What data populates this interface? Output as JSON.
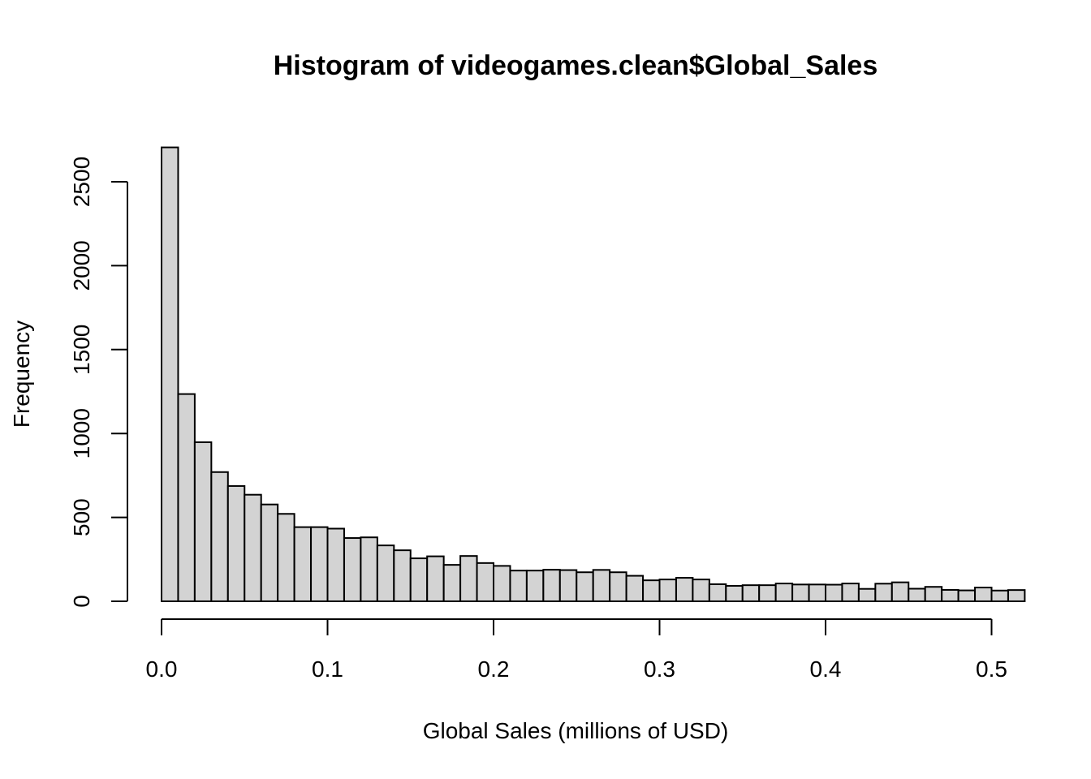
{
  "chart_data": {
    "type": "bar",
    "title": "Histogram of videogames.clean$Global_Sales",
    "xlabel": "Global Sales (millions of USD)",
    "ylabel": "Frequency",
    "bin_width": 0.01,
    "xlim": [
      0,
      0.52
    ],
    "ylim": [
      0,
      2700
    ],
    "x_ticks": [
      0.0,
      0.1,
      0.2,
      0.3,
      0.4,
      0.5
    ],
    "x_tick_labels": [
      "0.0",
      "0.1",
      "0.2",
      "0.3",
      "0.4",
      "0.5"
    ],
    "y_ticks": [
      0,
      500,
      1000,
      1500,
      2000,
      2500
    ],
    "y_tick_labels": [
      "0",
      "500",
      "1000",
      "1500",
      "2000",
      "2500"
    ],
    "bins": [
      [
        0.0,
        0.01
      ],
      [
        0.01,
        0.02
      ],
      [
        0.02,
        0.03
      ],
      [
        0.03,
        0.04
      ],
      [
        0.04,
        0.05
      ],
      [
        0.05,
        0.06
      ],
      [
        0.06,
        0.07
      ],
      [
        0.07,
        0.08
      ],
      [
        0.08,
        0.09
      ],
      [
        0.09,
        0.1
      ],
      [
        0.1,
        0.11
      ],
      [
        0.11,
        0.12
      ],
      [
        0.12,
        0.13
      ],
      [
        0.13,
        0.14
      ],
      [
        0.14,
        0.15
      ],
      [
        0.15,
        0.16
      ],
      [
        0.16,
        0.17
      ],
      [
        0.17,
        0.18
      ],
      [
        0.18,
        0.19
      ],
      [
        0.19,
        0.2
      ],
      [
        0.2,
        0.21
      ],
      [
        0.21,
        0.22
      ],
      [
        0.22,
        0.23
      ],
      [
        0.23,
        0.24
      ],
      [
        0.24,
        0.25
      ],
      [
        0.25,
        0.26
      ],
      [
        0.26,
        0.27
      ],
      [
        0.27,
        0.28
      ],
      [
        0.28,
        0.29
      ],
      [
        0.29,
        0.3
      ],
      [
        0.3,
        0.31
      ],
      [
        0.31,
        0.32
      ],
      [
        0.32,
        0.33
      ],
      [
        0.33,
        0.34
      ],
      [
        0.34,
        0.35
      ],
      [
        0.35,
        0.36
      ],
      [
        0.36,
        0.37
      ],
      [
        0.37,
        0.38
      ],
      [
        0.38,
        0.39
      ],
      [
        0.39,
        0.4
      ],
      [
        0.4,
        0.41
      ],
      [
        0.41,
        0.42
      ],
      [
        0.42,
        0.43
      ],
      [
        0.43,
        0.44
      ],
      [
        0.44,
        0.45
      ],
      [
        0.45,
        0.46
      ],
      [
        0.46,
        0.47
      ],
      [
        0.47,
        0.48
      ],
      [
        0.48,
        0.49
      ],
      [
        0.49,
        0.5
      ],
      [
        0.5,
        0.51
      ],
      [
        0.51,
        0.52
      ]
    ],
    "values": [
      2705,
      1235,
      948,
      770,
      687,
      635,
      577,
      521,
      442,
      442,
      433,
      377,
      381,
      333,
      304,
      256,
      268,
      217,
      270,
      228,
      211,
      183,
      183,
      188,
      186,
      173,
      187,
      173,
      152,
      125,
      130,
      140,
      130,
      102,
      92,
      96,
      96,
      106,
      100,
      100,
      99,
      106,
      74,
      105,
      113,
      75,
      86,
      68,
      65,
      82,
      64,
      67
    ],
    "colors": {
      "bar_fill": "#d3d3d3",
      "bar_stroke": "#000000"
    },
    "grid": false
  }
}
